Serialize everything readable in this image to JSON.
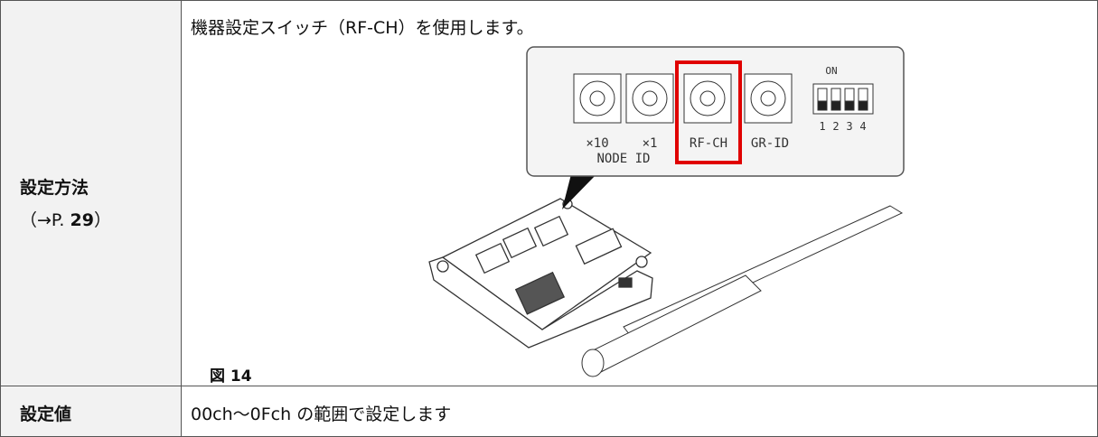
{
  "table": {
    "rows": [
      {
        "label": "設定方法",
        "ref_prefix": "（→P. ",
        "ref_page": 29,
        "ref_suffix": "）",
        "text": "機器設定スイッチ（RF-CH）を使用します。",
        "figure": {
          "switch_labels": [
            "×10",
            "×1",
            "RF-CH",
            "GR-ID"
          ],
          "group_label": "NODE ID",
          "dip_label": "ON",
          "dip_numbers": [
            "1",
            "2",
            "3",
            "4"
          ],
          "caption": "図 14"
        }
      },
      {
        "label": "設定値",
        "text": "00ch〜0Fch の範囲で設定します"
      }
    ]
  }
}
